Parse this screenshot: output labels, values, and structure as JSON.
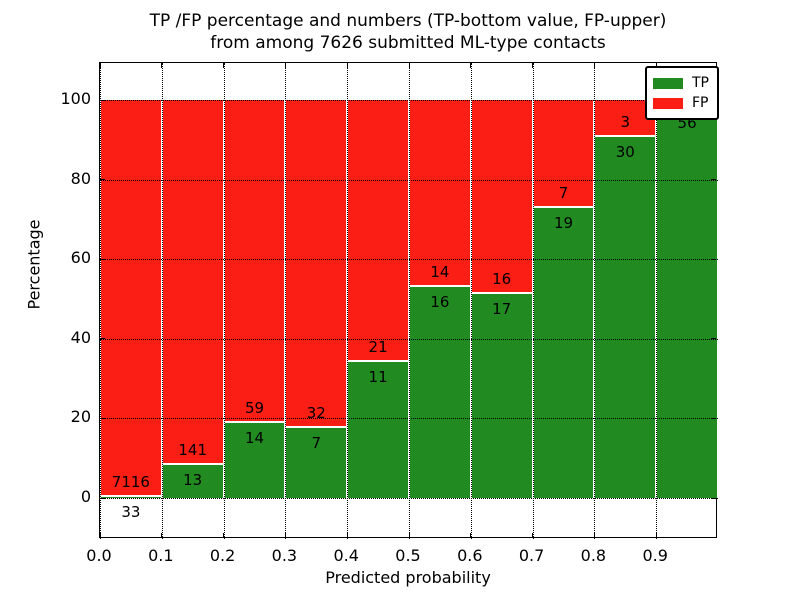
{
  "title": {
    "line1": "TP /FP percentage and numbers (TP-bottom value, FP-upper)",
    "line2": "from among 7626 submitted ML-type contacts"
  },
  "axes": {
    "xlabel": "Predicted probability",
    "ylabel": "Percentage",
    "x_tick_labels": [
      "0.0",
      "0.1",
      "0.2",
      "0.3",
      "0.4",
      "0.5",
      "0.6",
      "0.7",
      "0.8",
      "0.9"
    ],
    "y_tick_labels": [
      "0",
      "20",
      "40",
      "60",
      "80",
      "100"
    ],
    "xlim": [
      0.0,
      1.0
    ],
    "ylim": [
      -10.3,
      109.3
    ],
    "grid": "dotted both axes"
  },
  "legend": {
    "position": "upper right",
    "items": [
      {
        "label": "TP",
        "color": "#218a21"
      },
      {
        "label": "FP",
        "color": "#fa1e14"
      }
    ]
  },
  "colors": {
    "tp_green": "#218a21",
    "fp_red": "#fa1e14",
    "background": "#ffffff",
    "text": "#000000"
  },
  "chart_data": {
    "type": "bar",
    "stacked": true,
    "bar_width": 0.1,
    "title": "TP /FP percentage and numbers (TP-bottom value, FP-upper) from among 7626 submitted ML-type contacts",
    "xlabel": "Predicted probability",
    "ylabel": "Percentage",
    "total_contacts": 7626,
    "note": "Each bar stacks to 100%. TP count label shown below boundary, FP count label above. FP label of last bin hidden behind legend.",
    "bins": [
      {
        "x0": 0.0,
        "x1": 0.1,
        "tp": 33,
        "fp": 7116,
        "tp_pct": 0.46,
        "fp_pct": 99.54,
        "tp_label": "33",
        "fp_label": "7116"
      },
      {
        "x0": 0.1,
        "x1": 0.2,
        "tp": 13,
        "fp": 141,
        "tp_pct": 8.44,
        "fp_pct": 91.56,
        "tp_label": "13",
        "fp_label": "141"
      },
      {
        "x0": 0.2,
        "x1": 0.3,
        "tp": 14,
        "fp": 59,
        "tp_pct": 19.18,
        "fp_pct": 80.82,
        "tp_label": "14",
        "fp_label": "59"
      },
      {
        "x0": 0.3,
        "x1": 0.4,
        "tp": 7,
        "fp": 32,
        "tp_pct": 17.95,
        "fp_pct": 82.05,
        "tp_label": "7",
        "fp_label": "32"
      },
      {
        "x0": 0.4,
        "x1": 0.5,
        "tp": 11,
        "fp": 21,
        "tp_pct": 34.38,
        "fp_pct": 65.62,
        "tp_label": "11",
        "fp_label": "21"
      },
      {
        "x0": 0.5,
        "x1": 0.6,
        "tp": 16,
        "fp": 14,
        "tp_pct": 53.33,
        "fp_pct": 46.67,
        "tp_label": "16",
        "fp_label": "14"
      },
      {
        "x0": 0.6,
        "x1": 0.7,
        "tp": 17,
        "fp": 16,
        "tp_pct": 51.52,
        "fp_pct": 48.48,
        "tp_label": "17",
        "fp_label": "16"
      },
      {
        "x0": 0.7,
        "x1": 0.8,
        "tp": 19,
        "fp": 7,
        "tp_pct": 73.08,
        "fp_pct": 26.92,
        "tp_label": "19",
        "fp_label": "7"
      },
      {
        "x0": 0.8,
        "x1": 0.9,
        "tp": 30,
        "fp": 3,
        "tp_pct": 90.91,
        "fp_pct": 9.09,
        "tp_label": "30",
        "fp_label": "3"
      },
      {
        "x0": 0.9,
        "x1": 1.0,
        "tp": 56,
        "fp": 1,
        "tp_pct": 98.25,
        "fp_pct": 1.75,
        "tp_label": "56",
        "fp_label": ""
      }
    ]
  }
}
